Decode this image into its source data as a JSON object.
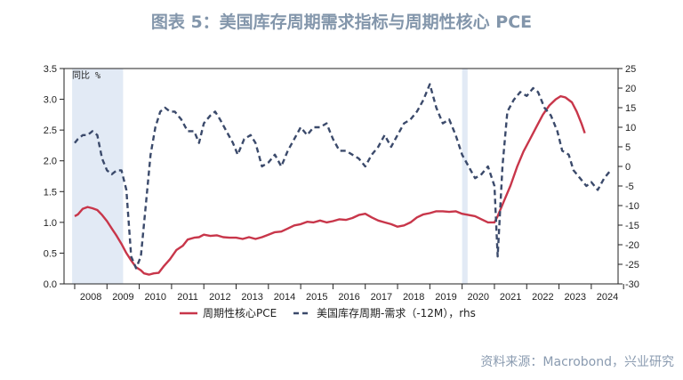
{
  "page": {
    "title": "图表 5：美国库存周期需求指标与周期性核心 PCE",
    "source": "资料来源：Macrobond，兴业研究"
  },
  "chart_data": {
    "type": "line",
    "unit_label": "同比 %",
    "x_ticks": [
      "2008",
      "2009",
      "2010",
      "2011",
      "2012",
      "2013",
      "2014",
      "2015",
      "2016",
      "2017",
      "2018",
      "2019",
      "2020",
      "2021",
      "2022",
      "2023",
      "2024"
    ],
    "y_left": {
      "min": 0.0,
      "max": 3.5,
      "ticks": [
        "0.0",
        "0.5",
        "1.0",
        "1.5",
        "2.0",
        "2.5",
        "3.0",
        "3.5"
      ]
    },
    "y_right": {
      "min": -30,
      "max": 25,
      "ticks": [
        "-30",
        "-25",
        "-20",
        "-15",
        "-10",
        "-5",
        "0",
        "5",
        "10",
        "15",
        "20",
        "25"
      ]
    },
    "shaded_ranges": [
      [
        2007.92,
        2009.5
      ],
      [
        2020.0,
        2020.17
      ]
    ],
    "colors": {
      "pce": "#c8364a",
      "demand": "#3b4a6b",
      "shade": "#e2eaf5",
      "title": "#8396ab"
    },
    "series": [
      {
        "name": "周期性核心PCE",
        "axis": "left",
        "style": "solid",
        "points": [
          [
            2008.0,
            1.1
          ],
          [
            2008.1,
            1.13
          ],
          [
            2008.25,
            1.22
          ],
          [
            2008.4,
            1.25
          ],
          [
            2008.55,
            1.23
          ],
          [
            2008.7,
            1.2
          ],
          [
            2008.85,
            1.12
          ],
          [
            2009.0,
            1.02
          ],
          [
            2009.15,
            0.9
          ],
          [
            2009.3,
            0.78
          ],
          [
            2009.45,
            0.65
          ],
          [
            2009.6,
            0.5
          ],
          [
            2009.75,
            0.38
          ],
          [
            2009.9,
            0.27
          ],
          [
            2010.05,
            0.22
          ],
          [
            2010.15,
            0.17
          ],
          [
            2010.3,
            0.15
          ],
          [
            2010.45,
            0.17
          ],
          [
            2010.6,
            0.18
          ],
          [
            2010.75,
            0.28
          ],
          [
            2010.95,
            0.4
          ],
          [
            2011.15,
            0.55
          ],
          [
            2011.35,
            0.62
          ],
          [
            2011.5,
            0.72
          ],
          [
            2011.7,
            0.75
          ],
          [
            2011.85,
            0.76
          ],
          [
            2012.0,
            0.8
          ],
          [
            2012.2,
            0.78
          ],
          [
            2012.4,
            0.79
          ],
          [
            2012.6,
            0.76
          ],
          [
            2012.8,
            0.75
          ],
          [
            2013.0,
            0.75
          ],
          [
            2013.2,
            0.73
          ],
          [
            2013.4,
            0.76
          ],
          [
            2013.6,
            0.73
          ],
          [
            2013.8,
            0.76
          ],
          [
            2014.0,
            0.8
          ],
          [
            2014.2,
            0.84
          ],
          [
            2014.4,
            0.85
          ],
          [
            2014.6,
            0.9
          ],
          [
            2014.8,
            0.95
          ],
          [
            2015.0,
            0.97
          ],
          [
            2015.2,
            1.01
          ],
          [
            2015.4,
            1.0
          ],
          [
            2015.6,
            1.03
          ],
          [
            2015.8,
            1.0
          ],
          [
            2016.0,
            1.02
          ],
          [
            2016.2,
            1.05
          ],
          [
            2016.4,
            1.04
          ],
          [
            2016.6,
            1.07
          ],
          [
            2016.8,
            1.12
          ],
          [
            2017.0,
            1.14
          ],
          [
            2017.2,
            1.08
          ],
          [
            2017.4,
            1.03
          ],
          [
            2017.6,
            1.0
          ],
          [
            2017.8,
            0.97
          ],
          [
            2018.0,
            0.93
          ],
          [
            2018.2,
            0.95
          ],
          [
            2018.4,
            1.0
          ],
          [
            2018.6,
            1.08
          ],
          [
            2018.8,
            1.13
          ],
          [
            2019.0,
            1.15
          ],
          [
            2019.2,
            1.18
          ],
          [
            2019.4,
            1.18
          ],
          [
            2019.6,
            1.17
          ],
          [
            2019.8,
            1.18
          ],
          [
            2020.0,
            1.14
          ],
          [
            2020.2,
            1.12
          ],
          [
            2020.4,
            1.1
          ],
          [
            2020.6,
            1.05
          ],
          [
            2020.8,
            1.0
          ],
          [
            2021.0,
            1.0
          ],
          [
            2021.1,
            1.1
          ],
          [
            2021.3,
            1.35
          ],
          [
            2021.5,
            1.6
          ],
          [
            2021.7,
            1.9
          ],
          [
            2021.9,
            2.15
          ],
          [
            2022.1,
            2.35
          ],
          [
            2022.3,
            2.55
          ],
          [
            2022.5,
            2.75
          ],
          [
            2022.7,
            2.9
          ],
          [
            2022.9,
            3.0
          ],
          [
            2023.05,
            3.05
          ],
          [
            2023.2,
            3.03
          ],
          [
            2023.4,
            2.95
          ],
          [
            2023.55,
            2.8
          ],
          [
            2023.7,
            2.6
          ],
          [
            2023.8,
            2.45
          ]
        ]
      },
      {
        "name": "美国库存周期-需求（-12M），rhs",
        "axis": "right",
        "style": "dashed",
        "points": [
          [
            2008.0,
            6
          ],
          [
            2008.1,
            7
          ],
          [
            2008.25,
            8
          ],
          [
            2008.4,
            8
          ],
          [
            2008.55,
            9
          ],
          [
            2008.7,
            8
          ],
          [
            2008.85,
            2
          ],
          [
            2009.0,
            -1
          ],
          [
            2009.15,
            -2
          ],
          [
            2009.3,
            -1
          ],
          [
            2009.45,
            -1
          ],
          [
            2009.6,
            -6
          ],
          [
            2009.75,
            -23
          ],
          [
            2009.9,
            -26
          ],
          [
            2010.05,
            -23
          ],
          [
            2010.2,
            -10
          ],
          [
            2010.35,
            3
          ],
          [
            2010.5,
            10
          ],
          [
            2010.65,
            14
          ],
          [
            2010.8,
            15
          ],
          [
            2010.95,
            14
          ],
          [
            2011.1,
            14
          ],
          [
            2011.3,
            12
          ],
          [
            2011.5,
            9
          ],
          [
            2011.7,
            9
          ],
          [
            2011.85,
            6
          ],
          [
            2012.0,
            11
          ],
          [
            2012.2,
            13
          ],
          [
            2012.35,
            14
          ],
          [
            2012.5,
            12
          ],
          [
            2012.7,
            9
          ],
          [
            2012.9,
            6
          ],
          [
            2013.05,
            3
          ],
          [
            2013.25,
            7
          ],
          [
            2013.45,
            8
          ],
          [
            2013.6,
            6
          ],
          [
            2013.8,
            0
          ],
          [
            2014.0,
            1
          ],
          [
            2014.2,
            3
          ],
          [
            2014.4,
            0
          ],
          [
            2014.6,
            4
          ],
          [
            2014.8,
            7
          ],
          [
            2015.0,
            10
          ],
          [
            2015.2,
            8
          ],
          [
            2015.4,
            10
          ],
          [
            2015.6,
            10
          ],
          [
            2015.8,
            11
          ],
          [
            2016.0,
            7
          ],
          [
            2016.2,
            4
          ],
          [
            2016.4,
            4
          ],
          [
            2016.6,
            3
          ],
          [
            2016.8,
            2
          ],
          [
            2017.0,
            0
          ],
          [
            2017.2,
            3
          ],
          [
            2017.4,
            5
          ],
          [
            2017.6,
            8
          ],
          [
            2017.8,
            5
          ],
          [
            2018.0,
            8
          ],
          [
            2018.2,
            11
          ],
          [
            2018.4,
            12
          ],
          [
            2018.6,
            14
          ],
          [
            2018.8,
            17
          ],
          [
            2019.0,
            21
          ],
          [
            2019.2,
            15
          ],
          [
            2019.4,
            11
          ],
          [
            2019.6,
            12
          ],
          [
            2019.8,
            8
          ],
          [
            2020.0,
            3
          ],
          [
            2020.2,
            0
          ],
          [
            2020.4,
            -3
          ],
          [
            2020.6,
            -2
          ],
          [
            2020.8,
            0
          ],
          [
            2021.0,
            -5
          ],
          [
            2021.1,
            -23
          ],
          [
            2021.25,
            0
          ],
          [
            2021.4,
            14
          ],
          [
            2021.6,
            17
          ],
          [
            2021.8,
            19
          ],
          [
            2022.0,
            18
          ],
          [
            2022.2,
            20
          ],
          [
            2022.35,
            19
          ],
          [
            2022.55,
            15
          ],
          [
            2022.75,
            13
          ],
          [
            2022.95,
            9
          ],
          [
            2023.1,
            4
          ],
          [
            2023.3,
            3
          ],
          [
            2023.45,
            -1
          ],
          [
            2023.65,
            -3
          ],
          [
            2023.85,
            -5
          ],
          [
            2024.0,
            -4
          ],
          [
            2024.2,
            -6
          ],
          [
            2024.4,
            -3
          ],
          [
            2024.6,
            -1
          ]
        ]
      }
    ]
  }
}
